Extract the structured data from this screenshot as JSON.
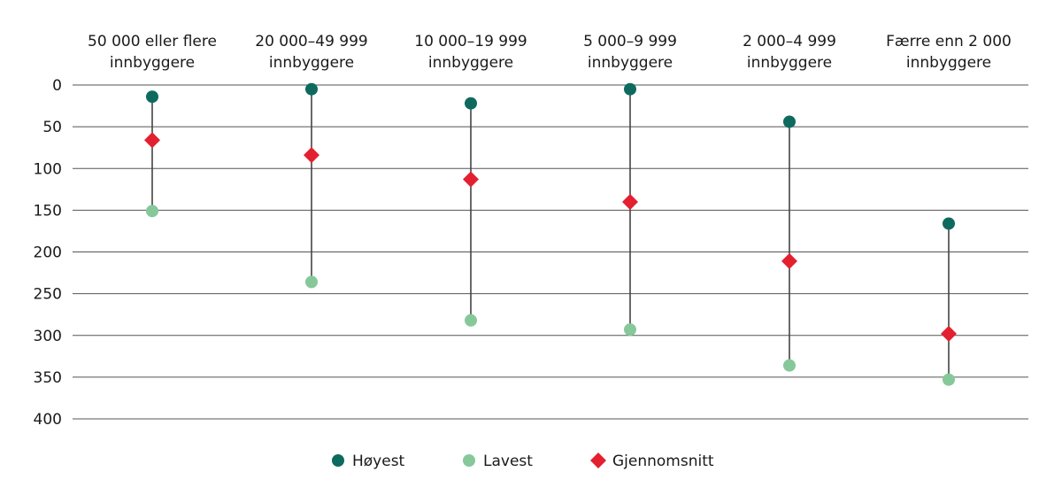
{
  "chart_data": {
    "type": "dot-range",
    "categories": [
      [
        "50 000 eller flere",
        "innbyggere"
      ],
      [
        "20 000–49 999",
        "innbyggere"
      ],
      [
        "10 000–19 999",
        "innbyggere"
      ],
      [
        "5 000–9 999",
        "innbyggere"
      ],
      [
        "2 000–4 999",
        "innbyggere"
      ],
      [
        "Færre enn 2 000",
        "innbyggere"
      ]
    ],
    "series": [
      {
        "name": "Høyest",
        "marker": "circle",
        "color": "#0e6a5e",
        "values": [
          14,
          5,
          22,
          5,
          44,
          166
        ]
      },
      {
        "name": "Lavest",
        "marker": "circle",
        "color": "#86c89a",
        "values": [
          151,
          236,
          282,
          293,
          336,
          353
        ]
      },
      {
        "name": "Gjennomsnitt",
        "marker": "diamond",
        "color": "#e3202f",
        "values": [
          66,
          84,
          113,
          140,
          211,
          298
        ]
      }
    ],
    "y_axis": {
      "min": 0,
      "max": 400,
      "reversed": true,
      "ticks": [
        "0",
        "50",
        "100",
        "150",
        "200",
        "250",
        "300",
        "350",
        "400"
      ]
    },
    "grid": true,
    "legend_position": "bottom"
  }
}
